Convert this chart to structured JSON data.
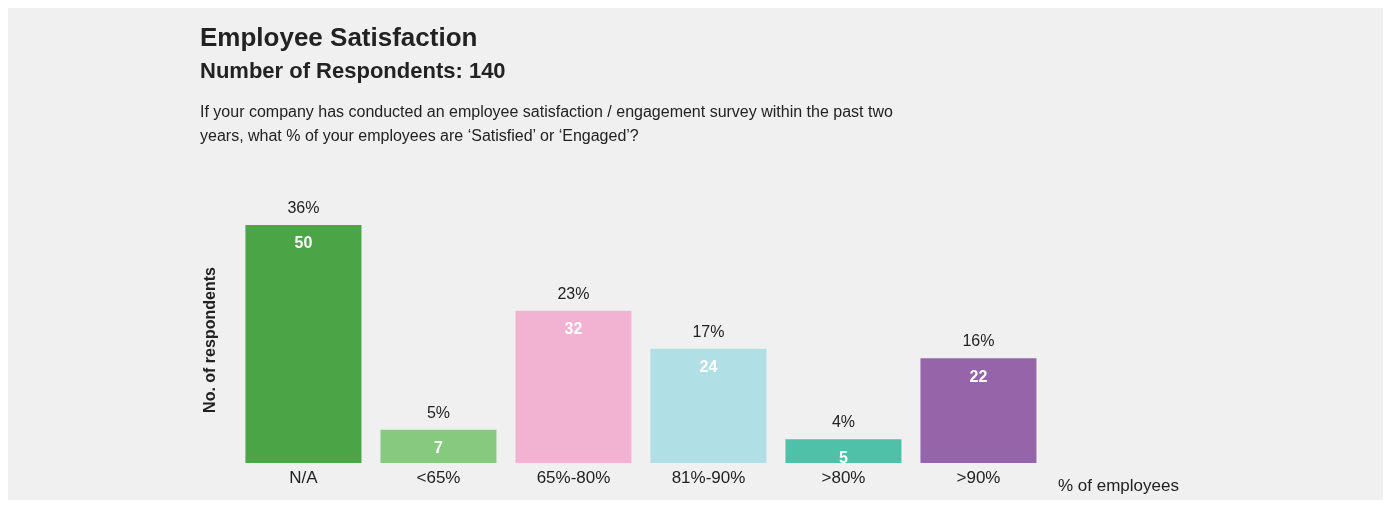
{
  "chart_data": {
    "type": "bar",
    "title": "Employee Satisfaction",
    "subtitle": "Number of Respondents: 140",
    "annotations": [
      "If your company has conducted an employee satisfaction / engagement survey within the past two years, what % of your employees are ‘Satisfied’ or ‘Engaged’?",
      {
        "text": "36%",
        "x": "N/A",
        "y": 50
      },
      {
        "text": "5%",
        "x": "<65%",
        "y": 7
      },
      {
        "text": "23%",
        "x": "65%-80%",
        "y": 32
      },
      {
        "text": "17%",
        "x": "81%-90%",
        "y": 24
      },
      {
        "text": "4%",
        "x": ">80%",
        "y": 5
      },
      {
        "text": "16%",
        "x": ">90%",
        "y": 22
      }
    ],
    "xlabel": "% of employees",
    "ylabel": "No. of respondents",
    "categories": [
      "N/A",
      "<65%",
      "65%-80%",
      "81%-90%",
      ">80%",
      ">90%"
    ],
    "values": [
      50,
      7,
      32,
      24,
      5,
      22
    ],
    "colors": [
      "#4ba446",
      "#87c97f",
      "#f2b3d3",
      "#b0dfe5",
      "#4fc1a9",
      "#9564a9"
    ],
    "data_labels": true
  }
}
